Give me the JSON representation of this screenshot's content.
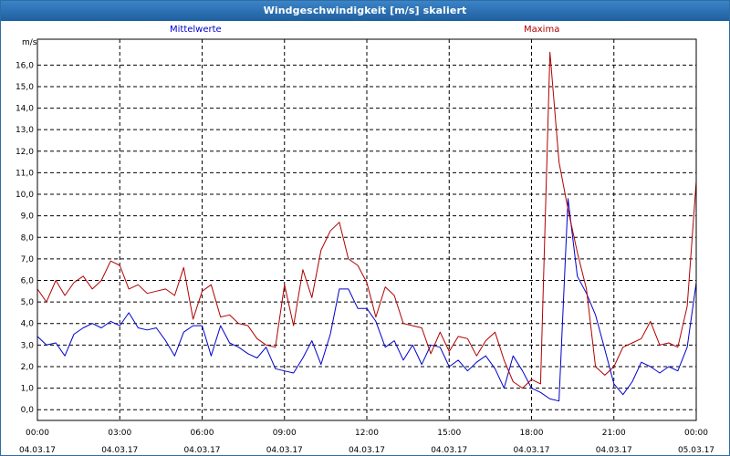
{
  "window": {
    "title": "Windgeschwindigkeit [m/s] skaliert"
  },
  "chart_data": {
    "type": "line",
    "title": "Windgeschwindigkeit [m/s] skaliert",
    "ylabel": "m/s",
    "xlabel": "",
    "ylim": [
      -0.5,
      17.2
    ],
    "xlim": [
      0,
      24
    ],
    "grid": true,
    "legend": "top",
    "y_ticks": [
      "0,0",
      "1,0",
      "2,0",
      "3,0",
      "4,0",
      "5,0",
      "6,0",
      "7,0",
      "8,0",
      "9,0",
      "10,0",
      "11,0",
      "12,0",
      "13,0",
      "14,0",
      "15,0",
      "16,0"
    ],
    "y_tick_values": [
      0,
      1,
      2,
      3,
      4,
      5,
      6,
      7,
      8,
      9,
      10,
      11,
      12,
      13,
      14,
      15,
      16
    ],
    "x_ticks": [
      {
        "time": "00:00",
        "date": "04.03.17",
        "hour": 0
      },
      {
        "time": "03:00",
        "date": "04.03.17",
        "hour": 3
      },
      {
        "time": "06:00",
        "date": "04.03.17",
        "hour": 6
      },
      {
        "time": "09:00",
        "date": "04.03.17",
        "hour": 9
      },
      {
        "time": "12:00",
        "date": "04.03.17",
        "hour": 12
      },
      {
        "time": "15:00",
        "date": "04.03.17",
        "hour": 15
      },
      {
        "time": "18:00",
        "date": "04.03.17",
        "hour": 18
      },
      {
        "time": "21:00",
        "date": "04.03.17",
        "hour": 21
      },
      {
        "time": "00:00",
        "date": "05.03.17",
        "hour": 24
      }
    ],
    "series": [
      {
        "name": "Mittelwerte",
        "color": "#0000cc",
        "x": [
          0,
          0.33,
          0.67,
          1,
          1.33,
          1.67,
          2,
          2.33,
          2.67,
          3,
          3.33,
          3.67,
          4,
          4.33,
          4.67,
          5,
          5.33,
          5.67,
          6,
          6.33,
          6.67,
          7,
          7.33,
          7.67,
          8,
          8.33,
          8.67,
          9,
          9.33,
          9.67,
          10,
          10.33,
          10.67,
          11,
          11.33,
          11.67,
          12,
          12.33,
          12.67,
          13,
          13.33,
          13.67,
          14,
          14.33,
          14.67,
          15,
          15.33,
          15.67,
          16,
          16.33,
          16.67,
          17,
          17.33,
          17.67,
          18,
          18.33,
          18.67,
          19,
          19.33,
          19.67,
          20,
          20.33,
          20.67,
          21,
          21.33,
          21.67,
          22,
          22.33,
          22.67,
          23,
          23.33,
          23.67,
          24
        ],
        "values": [
          3.4,
          3.0,
          3.1,
          2.5,
          3.5,
          3.8,
          4.0,
          3.8,
          4.1,
          3.9,
          4.5,
          3.8,
          3.7,
          3.8,
          3.2,
          2.5,
          3.6,
          3.9,
          3.9,
          2.5,
          3.9,
          3.1,
          2.9,
          2.6,
          2.4,
          2.9,
          1.9,
          1.8,
          1.7,
          2.4,
          3.2,
          2.1,
          3.5,
          5.6,
          5.6,
          4.7,
          4.7,
          4.1,
          2.9,
          3.2,
          2.3,
          3.0,
          2.1,
          3.0,
          2.9,
          2.0,
          2.3,
          1.8,
          2.2,
          2.5,
          1.9,
          1.0,
          2.5,
          1.8,
          1.0,
          0.8,
          0.5,
          0.4,
          9.8,
          6.2,
          5.4,
          4.4,
          2.8,
          1.2,
          0.7,
          1.3,
          2.2,
          2.0,
          1.7,
          2.0,
          1.8,
          2.9,
          5.9
        ]
      },
      {
        "name": "Maxima",
        "color": "#b00000",
        "x": [
          0,
          0.33,
          0.67,
          1,
          1.33,
          1.67,
          2,
          2.33,
          2.67,
          3,
          3.33,
          3.67,
          4,
          4.33,
          4.67,
          5,
          5.33,
          5.67,
          6,
          6.33,
          6.67,
          7,
          7.33,
          7.67,
          8,
          8.33,
          8.67,
          9,
          9.33,
          9.67,
          10,
          10.33,
          10.67,
          11,
          11.33,
          11.67,
          12,
          12.33,
          12.67,
          13,
          13.33,
          13.67,
          14,
          14.33,
          14.67,
          15,
          15.33,
          15.67,
          16,
          16.33,
          16.67,
          17,
          17.33,
          17.67,
          18,
          18.33,
          18.67,
          19,
          19.33,
          19.67,
          20,
          20.33,
          20.67,
          21,
          21.33,
          21.67,
          22,
          22.33,
          22.67,
          23,
          23.33,
          23.67,
          24
        ],
        "values": [
          5.6,
          5.0,
          6.0,
          5.3,
          5.9,
          6.2,
          5.6,
          6.0,
          6.9,
          6.7,
          5.6,
          5.8,
          5.4,
          5.5,
          5.6,
          5.3,
          6.6,
          4.2,
          5.5,
          5.8,
          4.3,
          4.4,
          4.0,
          3.9,
          3.3,
          3.0,
          2.9,
          5.8,
          3.9,
          6.5,
          5.2,
          7.4,
          8.3,
          8.7,
          7.0,
          6.7,
          5.9,
          4.3,
          5.7,
          5.3,
          4.0,
          3.9,
          3.8,
          2.6,
          3.6,
          2.7,
          3.4,
          3.3,
          2.5,
          3.2,
          3.6,
          2.3,
          1.3,
          1.0,
          1.4,
          1.2,
          16.6,
          11.5,
          9.3,
          7.3,
          5.6,
          2.0,
          1.6,
          2.0,
          2.9,
          3.1,
          3.3,
          4.1,
          3.0,
          3.1,
          2.9,
          4.8,
          10.6
        ]
      }
    ]
  }
}
